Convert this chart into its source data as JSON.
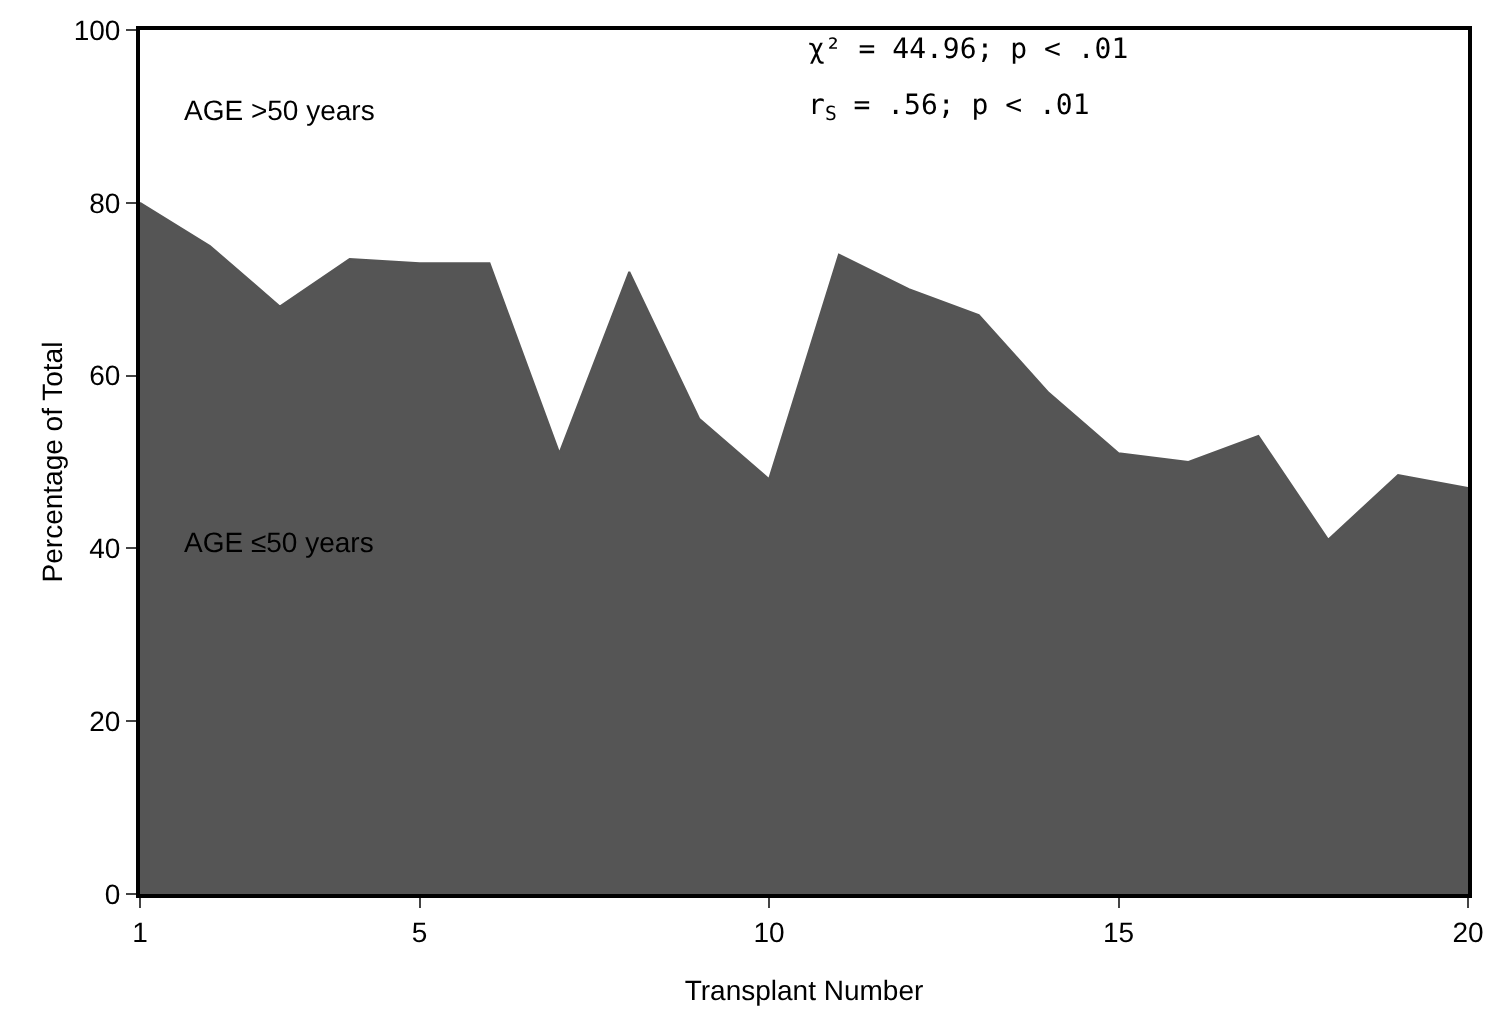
{
  "chart_data": {
    "type": "area",
    "xlabel": "Transplant Number",
    "ylabel": "Percentage of Total",
    "x": [
      1,
      2,
      3,
      4,
      5,
      6,
      7,
      8,
      9,
      10,
      11,
      12,
      13,
      14,
      15,
      16,
      17,
      18,
      19,
      20
    ],
    "values": [
      80,
      75,
      68,
      73.5,
      73,
      73,
      51,
      72,
      55,
      48,
      74,
      70,
      67,
      58,
      51,
      50,
      53,
      41,
      48.5,
      47
    ],
    "color": "#555555",
    "xlim": [
      1,
      20
    ],
    "xticks": [
      1,
      5,
      10,
      15,
      20
    ],
    "ylim": [
      0,
      100
    ],
    "yticks": [
      0,
      20,
      40,
      60,
      80,
      100
    ],
    "grid": false,
    "annotations": [
      "χ² = 44.96; p < .01",
      "r$_{S}$ = .56; p < .01",
      "AGE >50 years",
      "AGE ≤50 years"
    ]
  }
}
